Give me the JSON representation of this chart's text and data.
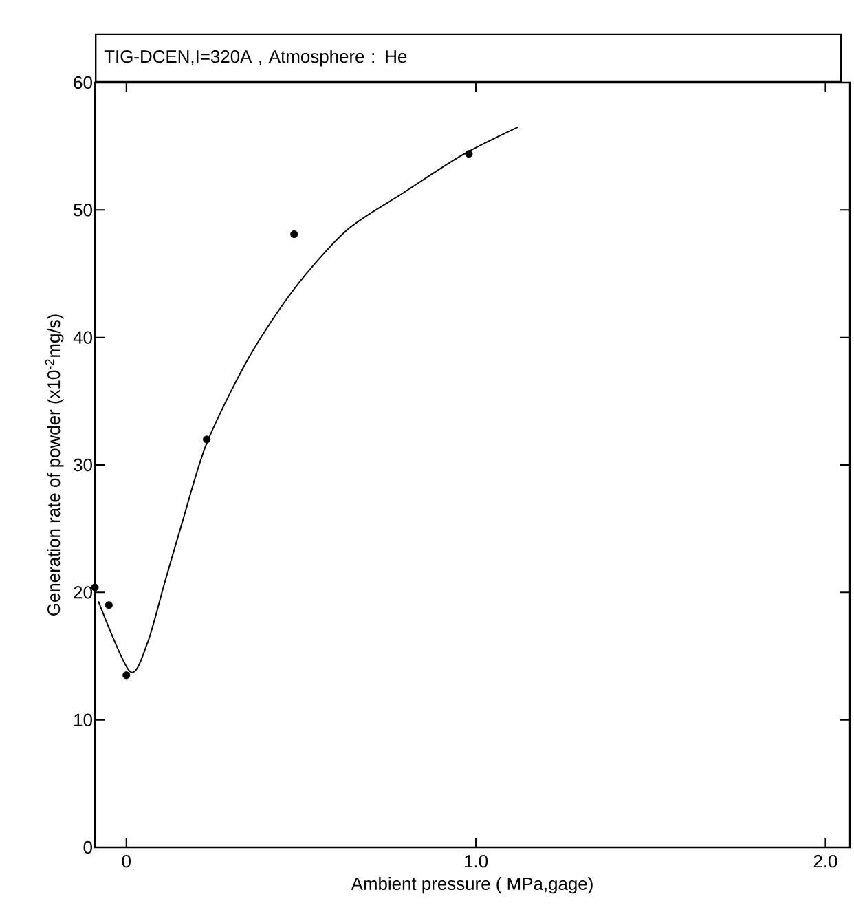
{
  "chart_data": {
    "type": "scatter",
    "title": "TIG-DCEN,I=320A , Atmosphere : He",
    "xlabel": "Ambient   pressure ( MPa,gage)",
    "ylabel": "Generation rate of powder (x10$^{-2}$mg/s)",
    "xlim": [
      -0.09,
      2.07
    ],
    "ylim": [
      0,
      60
    ],
    "xticks": [
      0,
      {
        "value": 1,
        "label": "1.0"
      },
      {
        "value": 2,
        "label": "2.0"
      }
    ],
    "yticks": [
      0,
      10,
      20,
      30,
      40,
      50,
      60
    ],
    "series": [
      {
        "marker": "circle",
        "color": "#000000",
        "x": [
          -0.09,
          -0.05,
          0,
          0.23,
          0.48,
          0.98
        ],
        "values": [
          20.4,
          19,
          13.5,
          32,
          48.1,
          54.4
        ]
      },
      {
        "type": "line",
        "marker": "none",
        "line_style": "solid",
        "color": "#000000",
        "x": [
          -0.08,
          0.01,
          0.06,
          0.11,
          0.16,
          0.23,
          0.35,
          0.48,
          0.63,
          0.79,
          0.96,
          1.12
        ],
        "values": [
          19.3,
          13.8,
          16,
          20.8,
          25.5,
          31.7,
          38.4,
          43.8,
          48.4,
          51.3,
          54.3,
          56.5
        ]
      }
    ]
  }
}
